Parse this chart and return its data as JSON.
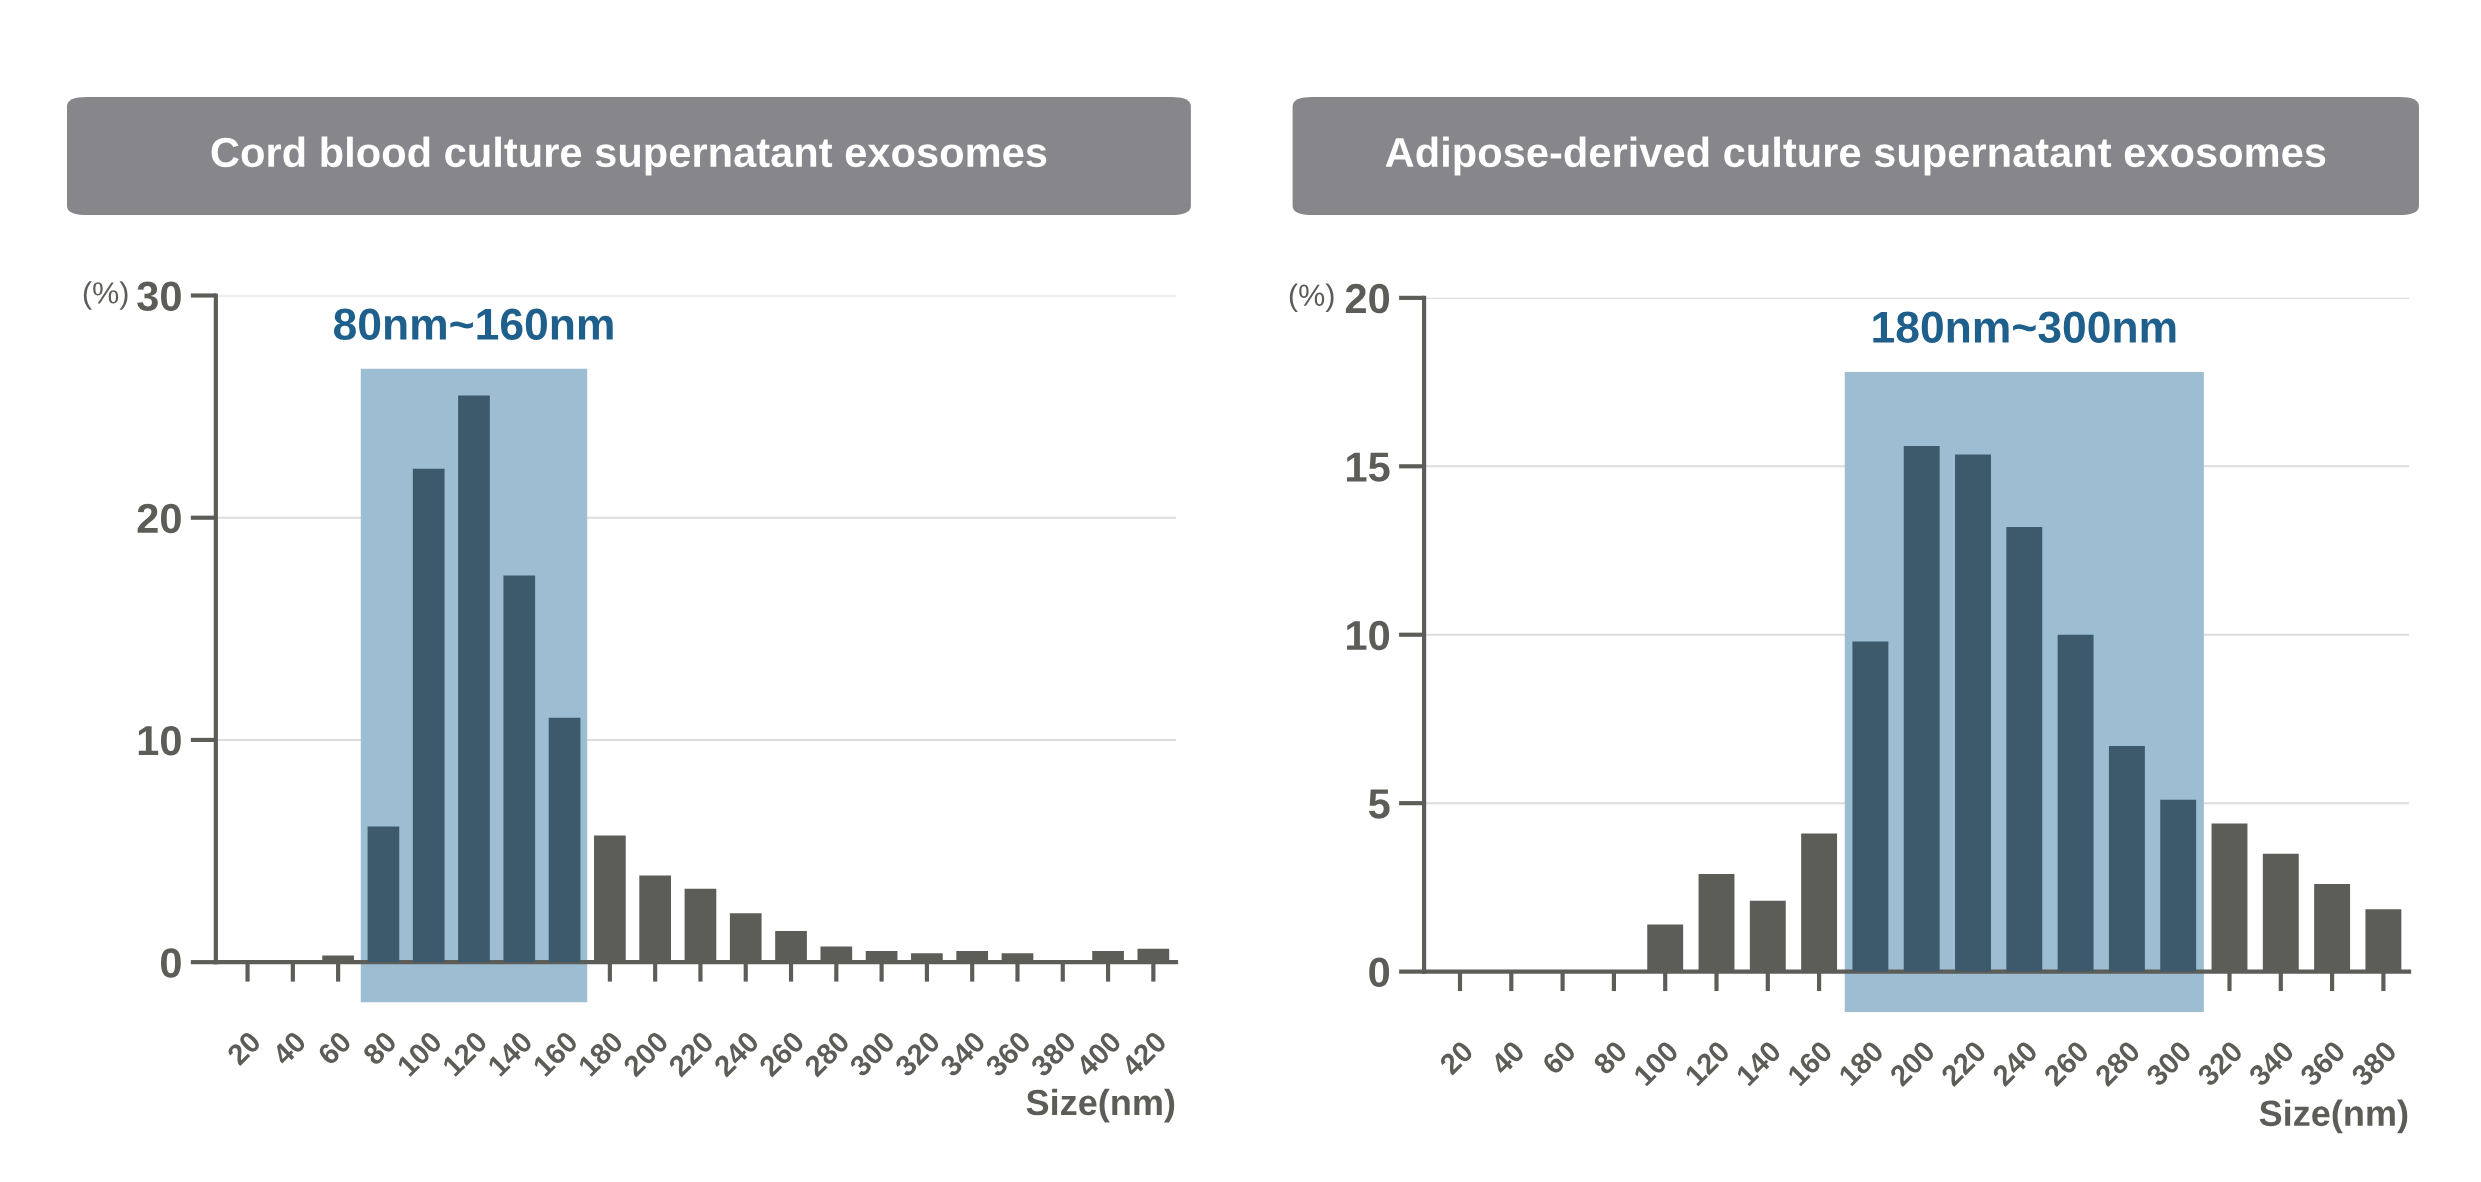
{
  "chart_data": [
    {
      "type": "bar",
      "title": "Cord blood culture supernatant exosomes",
      "xlabel": "Size(nm)",
      "ylabel": "(%)",
      "categories": [
        "20",
        "40",
        "60",
        "80",
        "100",
        "120",
        "140",
        "160",
        "180",
        "200",
        "220",
        "240",
        "260",
        "280",
        "300",
        "320",
        "340",
        "360",
        "380",
        "400",
        "420"
      ],
      "values": [
        0,
        0,
        0.3,
        6.1,
        22.2,
        25.5,
        17.4,
        11.0,
        5.7,
        3.9,
        3.3,
        2.2,
        1.4,
        0.7,
        0.5,
        0.4,
        0.5,
        0.4,
        0,
        0.5,
        0.6
      ],
      "colors": [
        "#5d5d58",
        "#5d5d58",
        "#5d5d58",
        "#3c5a6c",
        "#3c5a6c",
        "#3c5a6c",
        "#3c5a6c",
        "#3c5a6c",
        "#5d5d58",
        "#5d5d58",
        "#5d5d58",
        "#5d5d58",
        "#5d5d58",
        "#5d5d58",
        "#5d5d58",
        "#5d5d58",
        "#5d5d58",
        "#5d5d58",
        "#5d5d58",
        "#5d5d58",
        "#5d5d58"
      ],
      "bands": [
        {
          "axis": "x",
          "from": "80",
          "to": "160",
          "label": "80nm~160nm",
          "color": "#9dbdd3"
        }
      ],
      "ylim": [
        0,
        30
      ],
      "yticks": [
        0,
        10,
        20,
        30
      ],
      "grid": "y"
    },
    {
      "type": "bar",
      "title": "Adipose-derived culture supernatant exosomes",
      "xlabel": "Size(nm)",
      "ylabel": "(%)",
      "categories": [
        "20",
        "40",
        "60",
        "80",
        "100",
        "120",
        "140",
        "160",
        "180",
        "200",
        "220",
        "240",
        "260",
        "280",
        "300",
        "320",
        "340",
        "360",
        "380"
      ],
      "values": [
        0,
        0,
        0,
        0,
        1.4,
        2.9,
        2.1,
        4.1,
        9.8,
        15.6,
        15.35,
        13.2,
        10.0,
        6.7,
        5.1,
        4.4,
        3.5,
        2.6,
        1.85
      ],
      "colors": [
        "#5d5d58",
        "#5d5d58",
        "#5d5d58",
        "#5d5d58",
        "#5d5d58",
        "#5d5d58",
        "#5d5d58",
        "#5d5d58",
        "#3c5a6c",
        "#3c5a6c",
        "#3c5a6c",
        "#3c5a6c",
        "#3c5a6c",
        "#3c5a6c",
        "#3c5a6c",
        "#5d5d58",
        "#5d5d58",
        "#5d5d58",
        "#5d5d58"
      ],
      "bands": [
        {
          "axis": "x",
          "from": "180",
          "to": "300",
          "label": "180nm~300nm",
          "color": "#9dbdd3"
        }
      ],
      "ylim": [
        0,
        20
      ],
      "yticks": [
        0,
        5,
        10,
        15,
        20
      ],
      "grid": "y"
    }
  ]
}
